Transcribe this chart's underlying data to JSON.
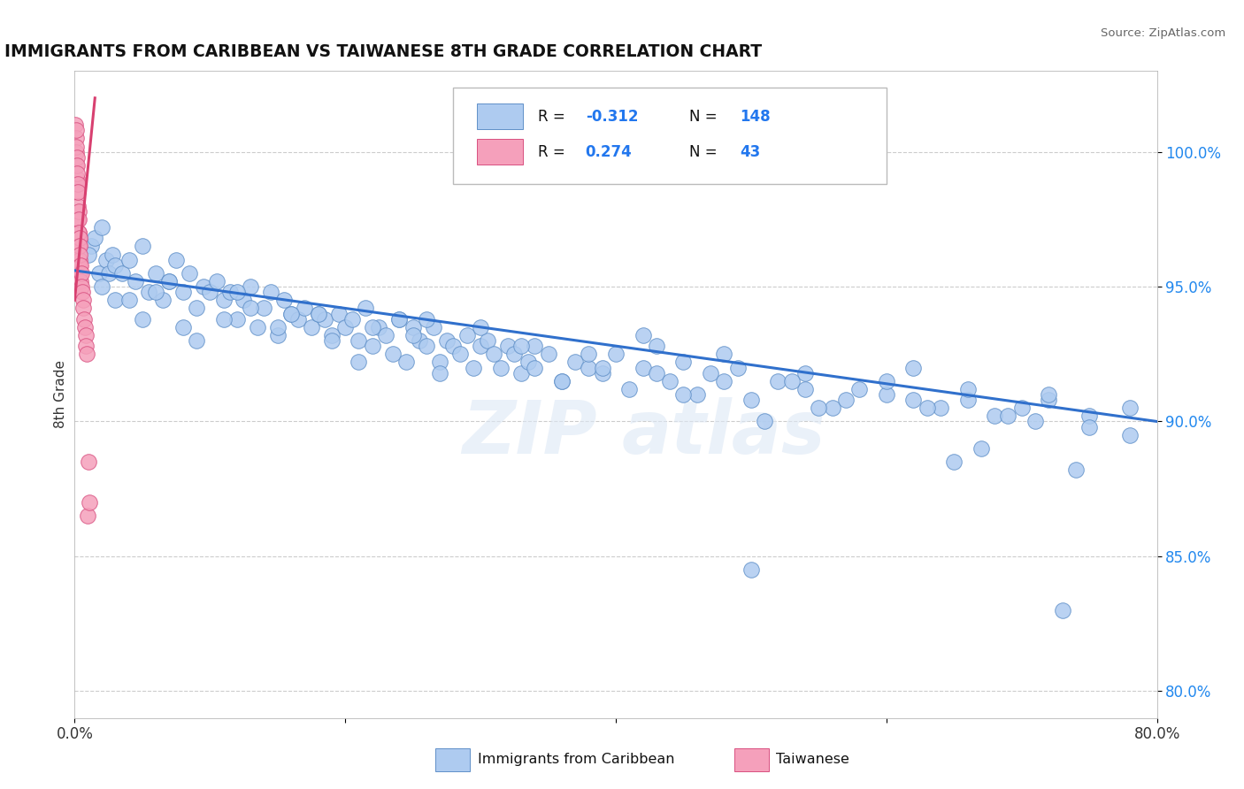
{
  "title": "IMMIGRANTS FROM CARIBBEAN VS TAIWANESE 8TH GRADE CORRELATION CHART",
  "source": "Source: ZipAtlas.com",
  "ylabel": "8th Grade",
  "xlim": [
    0.0,
    80.0
  ],
  "ylim": [
    79.0,
    103.0
  ],
  "yticks": [
    80.0,
    85.0,
    90.0,
    95.0,
    100.0
  ],
  "ytick_labels": [
    "80.0%",
    "85.0%",
    "90.0%",
    "95.0%",
    "100.0%"
  ],
  "xticks": [
    0.0,
    20.0,
    40.0,
    60.0,
    80.0
  ],
  "xtick_labels": [
    "0.0%",
    "",
    "",
    "",
    "80.0%"
  ],
  "blue_color": "#aecbf0",
  "blue_edge": "#6090c8",
  "pink_color": "#f5a0bb",
  "pink_edge": "#d85080",
  "trend_blue": "#3070cc",
  "trend_pink": "#d84070",
  "blue_trend_x": [
    0.0,
    80.0
  ],
  "blue_trend_y": [
    95.6,
    90.0
  ],
  "pink_trend_x": [
    0.0,
    1.5
  ],
  "pink_trend_y": [
    94.5,
    102.0
  ],
  "blue_x": [
    1.2,
    1.5,
    1.8,
    2.0,
    2.3,
    2.5,
    2.8,
    3.0,
    3.5,
    4.0,
    4.5,
    5.0,
    5.5,
    6.0,
    6.5,
    7.0,
    7.5,
    8.0,
    8.5,
    9.0,
    9.5,
    10.0,
    10.5,
    11.0,
    11.5,
    12.0,
    12.5,
    13.0,
    13.5,
    14.0,
    14.5,
    15.0,
    15.5,
    16.0,
    16.5,
    17.0,
    17.5,
    18.0,
    18.5,
    19.0,
    19.5,
    20.0,
    20.5,
    21.0,
    21.5,
    22.0,
    22.5,
    23.0,
    23.5,
    24.0,
    24.5,
    25.0,
    25.5,
    26.0,
    26.5,
    27.0,
    27.5,
    28.0,
    28.5,
    29.0,
    29.5,
    30.0,
    30.5,
    31.0,
    31.5,
    32.0,
    32.5,
    33.0,
    33.5,
    34.0,
    35.0,
    36.0,
    37.0,
    38.0,
    39.0,
    40.0,
    41.0,
    42.0,
    43.0,
    44.0,
    45.0,
    46.0,
    47.0,
    48.0,
    49.0,
    50.0,
    52.0,
    54.0,
    56.0,
    58.0,
    60.0,
    62.0,
    64.0,
    66.0,
    68.0,
    70.0,
    72.0,
    75.0,
    78.0,
    1.0,
    2.0,
    3.0,
    5.0,
    7.0,
    9.0,
    12.0,
    15.0,
    18.0,
    21.0,
    24.0,
    27.0,
    30.0,
    33.0,
    36.0,
    39.0,
    42.0,
    45.0,
    48.0,
    51.0,
    54.0,
    57.0,
    60.0,
    63.0,
    66.0,
    69.0,
    72.0,
    75.0,
    78.0,
    50.0,
    65.0,
    74.0,
    25.0,
    38.0,
    55.0,
    67.0,
    73.0,
    4.0,
    8.0,
    13.0,
    19.0,
    26.0,
    34.0,
    43.0,
    53.0,
    62.0,
    71.0,
    6.0,
    11.0,
    16.0,
    22.0
  ],
  "blue_y": [
    96.5,
    96.8,
    95.5,
    97.2,
    96.0,
    95.5,
    96.2,
    95.8,
    95.5,
    96.0,
    95.2,
    96.5,
    94.8,
    95.5,
    94.5,
    95.2,
    96.0,
    94.8,
    95.5,
    94.2,
    95.0,
    94.8,
    95.2,
    94.5,
    94.8,
    93.8,
    94.5,
    95.0,
    93.5,
    94.2,
    94.8,
    93.2,
    94.5,
    94.0,
    93.8,
    94.2,
    93.5,
    94.0,
    93.8,
    93.2,
    94.0,
    93.5,
    93.8,
    93.0,
    94.2,
    92.8,
    93.5,
    93.2,
    92.5,
    93.8,
    92.2,
    93.5,
    93.0,
    92.8,
    93.5,
    92.2,
    93.0,
    92.8,
    92.5,
    93.2,
    92.0,
    92.8,
    93.0,
    92.5,
    92.0,
    92.8,
    92.5,
    91.8,
    92.2,
    92.8,
    92.5,
    91.5,
    92.2,
    92.0,
    91.8,
    92.5,
    91.2,
    92.0,
    91.8,
    91.5,
    92.2,
    91.0,
    91.8,
    91.5,
    92.0,
    90.8,
    91.5,
    91.2,
    90.5,
    91.2,
    91.0,
    90.8,
    90.5,
    90.8,
    90.2,
    90.5,
    90.8,
    90.2,
    89.5,
    96.2,
    95.0,
    94.5,
    93.8,
    95.2,
    93.0,
    94.8,
    93.5,
    94.0,
    92.2,
    93.8,
    91.8,
    93.5,
    92.8,
    91.5,
    92.0,
    93.2,
    91.0,
    92.5,
    90.0,
    91.8,
    90.8,
    91.5,
    90.5,
    91.2,
    90.2,
    91.0,
    89.8,
    90.5,
    84.5,
    88.5,
    88.2,
    93.2,
    92.5,
    90.5,
    89.0,
    83.0,
    94.5,
    93.5,
    94.2,
    93.0,
    93.8,
    92.0,
    92.8,
    91.5,
    92.0,
    90.0,
    94.8,
    93.8,
    94.0,
    93.5
  ],
  "pink_x": [
    0.05,
    0.08,
    0.1,
    0.1,
    0.12,
    0.12,
    0.15,
    0.15,
    0.18,
    0.18,
    0.2,
    0.2,
    0.22,
    0.22,
    0.25,
    0.25,
    0.28,
    0.28,
    0.3,
    0.3,
    0.32,
    0.32,
    0.35,
    0.35,
    0.38,
    0.38,
    0.4,
    0.4,
    0.45,
    0.45,
    0.48,
    0.5,
    0.55,
    0.6,
    0.65,
    0.7,
    0.75,
    0.8,
    0.85,
    0.9,
    0.95,
    1.0,
    1.1
  ],
  "pink_y": [
    101.0,
    100.5,
    100.8,
    100.0,
    100.2,
    99.5,
    99.8,
    99.0,
    99.5,
    98.8,
    99.2,
    98.5,
    98.8,
    98.0,
    98.5,
    97.5,
    97.8,
    97.0,
    97.5,
    96.8,
    97.0,
    96.5,
    96.8,
    96.0,
    96.5,
    95.8,
    96.2,
    95.5,
    95.8,
    95.2,
    95.5,
    95.0,
    94.8,
    94.5,
    94.2,
    93.8,
    93.5,
    93.2,
    92.8,
    92.5,
    86.5,
    88.5,
    87.0
  ]
}
